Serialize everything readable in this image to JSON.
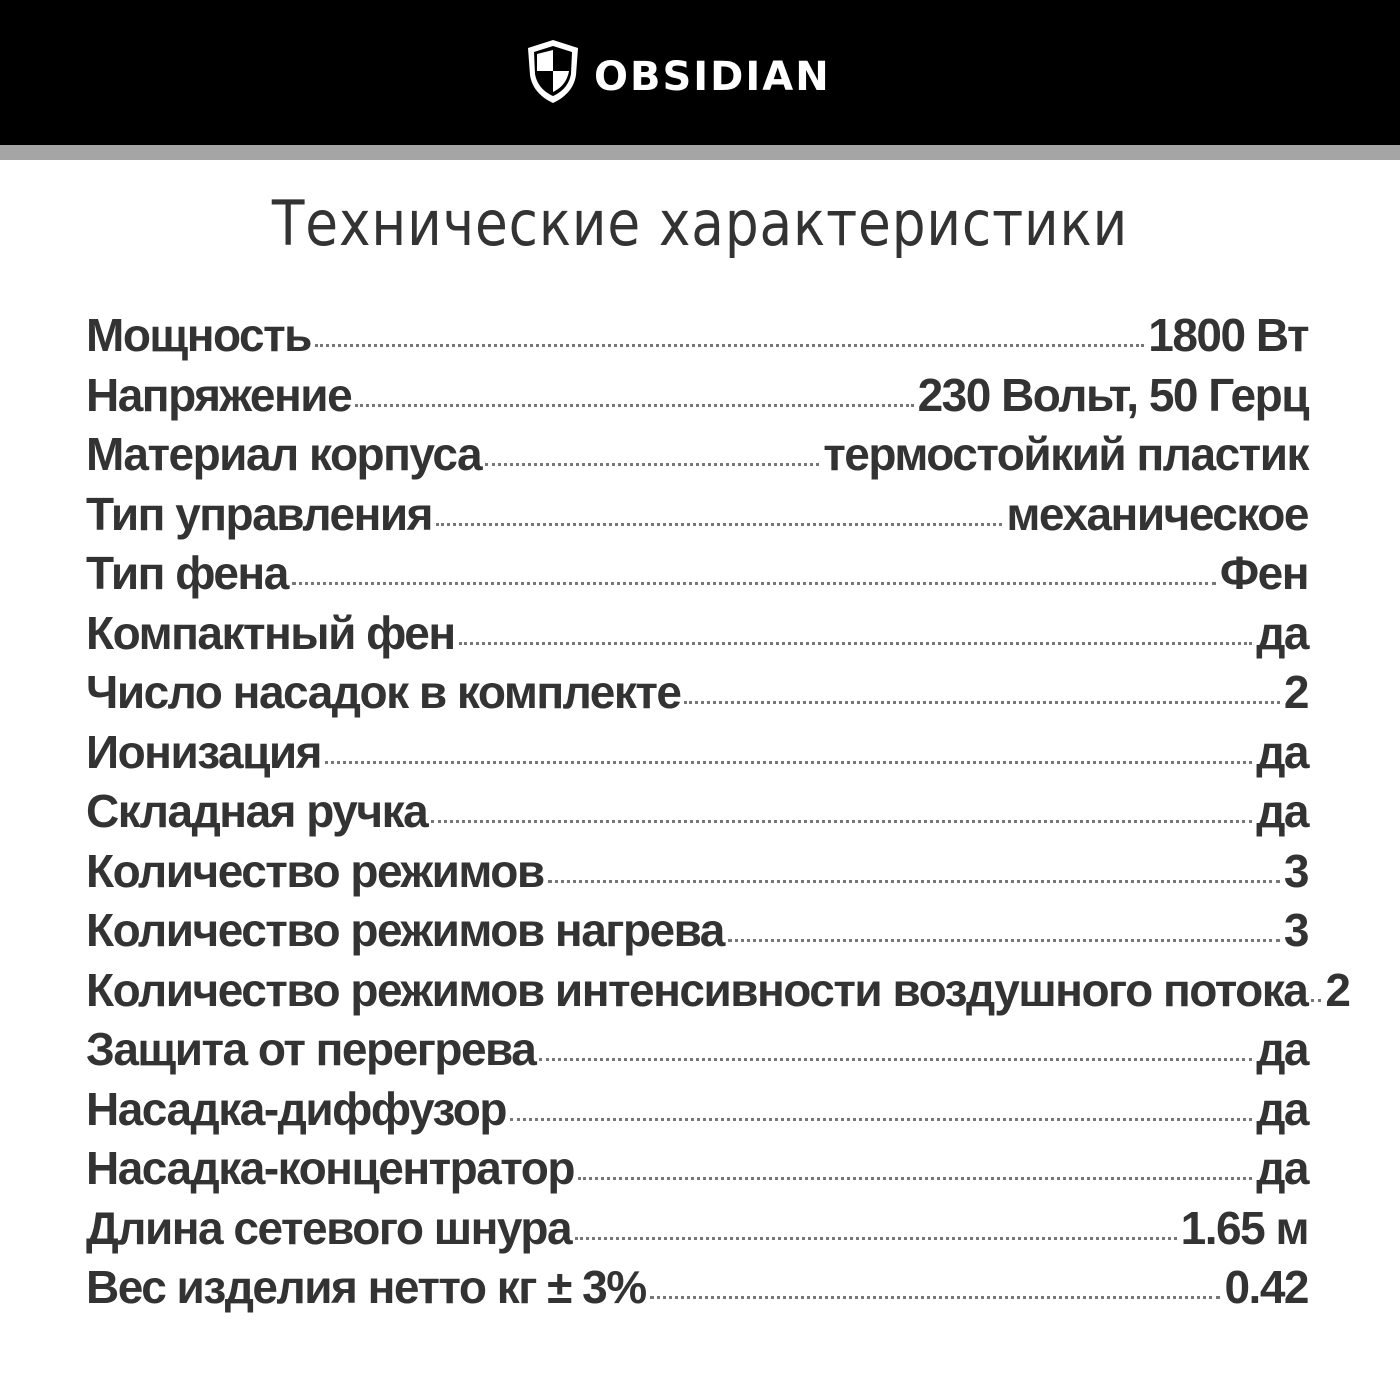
{
  "header": {
    "brand_name": "OBSIDIAN",
    "logo_icon": "shield-logo-icon",
    "background_color": "#000000",
    "stripe_color": "#a5a5a5"
  },
  "title": "Технические характеристики",
  "specs": [
    {
      "label": "Мощность",
      "value": "1800 Вт"
    },
    {
      "label": "Напряжение",
      "value": "230 Вольт, 50 Герц"
    },
    {
      "label": "Материал корпуса",
      "value": "термостойкий пластик"
    },
    {
      "label": "Тип управления",
      "value": "механическое"
    },
    {
      "label": "Тип фена",
      "value": "Фен"
    },
    {
      "label": "Компактный фен",
      "value": "да"
    },
    {
      "label": "Число насадок в комплекте",
      "value": "2"
    },
    {
      "label": "Ионизация",
      "value": "да"
    },
    {
      "label": "Складная ручка",
      "value": "да"
    },
    {
      "label": "Количество режимов",
      "value": "3"
    },
    {
      "label": "Количество режимов нагрева",
      "value": "3"
    },
    {
      "label": "Количество режимов интенсивности воздушного потока",
      "value": "2"
    },
    {
      "label": "Защита от перегрева",
      "value": "да"
    },
    {
      "label": "Насадка-диффузор",
      "value": "да"
    },
    {
      "label": "Насадка-концентратор",
      "value": "да"
    },
    {
      "label": "Длина сетевого шнура",
      "value": "1.65 м"
    },
    {
      "label": "Вес изделия нетто кг ± 3%",
      "value": "0.42"
    }
  ]
}
